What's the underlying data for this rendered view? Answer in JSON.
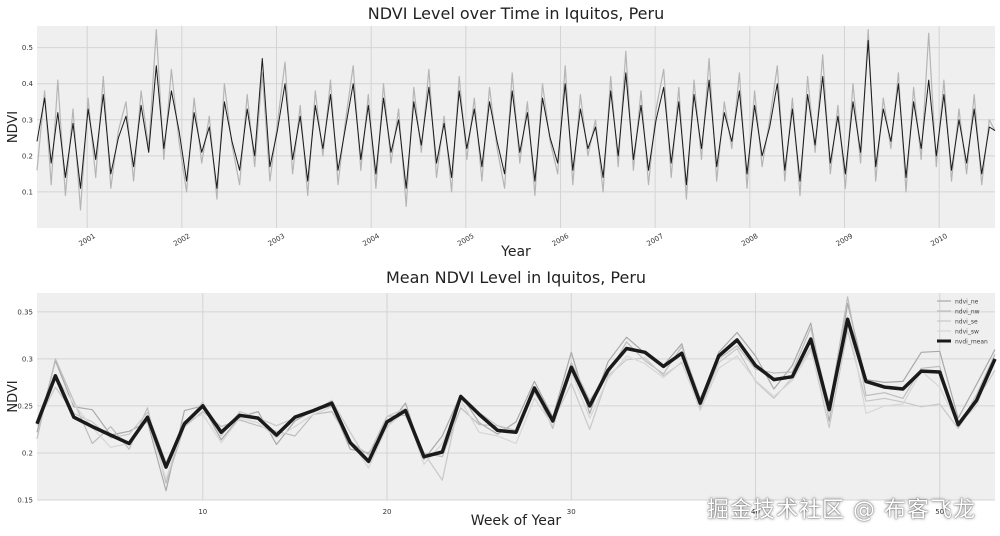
{
  "watermark": "掘金技术社区 @ 布客飞龙",
  "chart_data": [
    {
      "type": "line",
      "title": "NDVI Level over Time in Iquitos, Peru",
      "xlabel": "Year",
      "ylabel": "NDVI",
      "x_ticks": [
        "2001",
        "2002",
        "2003",
        "2004",
        "2005",
        "2006",
        "2007",
        "2008",
        "2009",
        "2010"
      ],
      "y_ticks": [
        0.1,
        0.2,
        0.3,
        0.4,
        0.5
      ],
      "xlim": [
        2000.5,
        2010.62
      ],
      "ylim": [
        0.0,
        0.56
      ],
      "grid": true,
      "series": [
        {
          "color": "#b5b5b5",
          "x": [
            2000.5,
            2000.58,
            2000.65,
            2000.72,
            2000.8,
            2000.88,
            2000.96,
            2001.04,
            2001.12,
            2001.2,
            2001.28,
            2001.36,
            2001.44,
            2001.52,
            2001.6,
            2001.68,
            2001.76,
            2001.84,
            2001.92,
            2002.0,
            2002.08,
            2002.16,
            2002.24,
            2002.32,
            2002.4,
            2002.48,
            2002.56,
            2002.64,
            2002.72,
            2002.8,
            2002.88,
            2002.96,
            2003.04,
            2003.12,
            2003.2,
            2003.28,
            2003.36,
            2003.44,
            2003.52,
            2003.6,
            2003.68,
            2003.76,
            2003.84,
            2003.92,
            2004.0,
            2004.08,
            2004.16,
            2004.24,
            2004.32,
            2004.4,
            2004.48,
            2004.56,
            2004.64,
            2004.72,
            2004.8,
            2004.88,
            2004.96,
            2005.04,
            2005.12,
            2005.2,
            2005.28,
            2005.36,
            2005.44,
            2005.52,
            2005.6,
            2005.68,
            2005.76,
            2005.84,
            2005.92,
            2006.0,
            2006.08,
            2006.16,
            2006.24,
            2006.32,
            2006.4,
            2006.48,
            2006.56,
            2006.64,
            2006.72,
            2006.8,
            2006.88,
            2006.96,
            2007.04,
            2007.12,
            2007.2,
            2007.28,
            2007.36,
            2007.44,
            2007.52,
            2007.6,
            2007.68,
            2007.76,
            2007.84,
            2007.92,
            2008.0,
            2008.08,
            2008.16,
            2008.24,
            2008.32,
            2008.4,
            2008.48,
            2008.56,
            2008.64,
            2008.72,
            2008.8,
            2008.88,
            2008.96,
            2009.04,
            2009.12,
            2009.2,
            2009.28,
            2009.36,
            2009.44,
            2009.52,
            2009.6,
            2009.68,
            2009.76,
            2009.84,
            2009.92,
            2010.0,
            2010.08,
            2010.16,
            2010.24,
            2010.32,
            2010.4,
            2010.48,
            2010.56,
            2010.62
          ],
          "values": [
            0.16,
            0.38,
            0.12,
            0.41,
            0.09,
            0.33,
            0.05,
            0.36,
            0.14,
            0.42,
            0.11,
            0.27,
            0.35,
            0.13,
            0.38,
            0.22,
            0.55,
            0.19,
            0.44,
            0.24,
            0.1,
            0.36,
            0.18,
            0.31,
            0.08,
            0.4,
            0.23,
            0.12,
            0.37,
            0.17,
            0.43,
            0.13,
            0.29,
            0.46,
            0.15,
            0.34,
            0.09,
            0.38,
            0.2,
            0.41,
            0.12,
            0.3,
            0.45,
            0.16,
            0.37,
            0.11,
            0.4,
            0.18,
            0.33,
            0.06,
            0.39,
            0.21,
            0.44,
            0.14,
            0.31,
            0.1,
            0.42,
            0.19,
            0.36,
            0.13,
            0.39,
            0.22,
            0.11,
            0.43,
            0.18,
            0.35,
            0.09,
            0.4,
            0.24,
            0.15,
            0.45,
            0.12,
            0.37,
            0.2,
            0.3,
            0.1,
            0.42,
            0.17,
            0.49,
            0.16,
            0.38,
            0.12,
            0.33,
            0.44,
            0.14,
            0.39,
            0.08,
            0.41,
            0.19,
            0.47,
            0.13,
            0.35,
            0.22,
            0.43,
            0.11,
            0.38,
            0.17,
            0.3,
            0.45,
            0.13,
            0.36,
            0.09,
            0.42,
            0.21,
            0.48,
            0.15,
            0.34,
            0.11,
            0.4,
            0.18,
            0.55,
            0.13,
            0.36,
            0.22,
            0.43,
            0.1,
            0.39,
            0.19,
            0.54,
            0.17,
            0.41,
            0.13,
            0.33,
            0.15,
            0.37,
            0.12,
            0.3,
            0.27
          ]
        },
        {
          "color": "#1a1a1a",
          "x": [
            2000.5,
            2000.58,
            2000.65,
            2000.72,
            2000.8,
            2000.88,
            2000.96,
            2001.04,
            2001.12,
            2001.2,
            2001.28,
            2001.36,
            2001.44,
            2001.52,
            2001.6,
            2001.68,
            2001.76,
            2001.84,
            2001.92,
            2002.0,
            2002.08,
            2002.16,
            2002.24,
            2002.32,
            2002.4,
            2002.48,
            2002.56,
            2002.64,
            2002.72,
            2002.8,
            2002.88,
            2002.96,
            2003.04,
            2003.12,
            2003.2,
            2003.28,
            2003.36,
            2003.44,
            2003.52,
            2003.6,
            2003.68,
            2003.76,
            2003.84,
            2003.92,
            2004.0,
            2004.08,
            2004.16,
            2004.24,
            2004.32,
            2004.4,
            2004.48,
            2004.56,
            2004.64,
            2004.72,
            2004.8,
            2004.88,
            2004.96,
            2005.04,
            2005.12,
            2005.2,
            2005.28,
            2005.36,
            2005.44,
            2005.52,
            2005.6,
            2005.68,
            2005.76,
            2005.84,
            2005.92,
            2006.0,
            2006.08,
            2006.16,
            2006.24,
            2006.32,
            2006.4,
            2006.48,
            2006.56,
            2006.64,
            2006.72,
            2006.8,
            2006.88,
            2006.96,
            2007.04,
            2007.12,
            2007.2,
            2007.28,
            2007.36,
            2007.44,
            2007.52,
            2007.6,
            2007.68,
            2007.76,
            2007.84,
            2007.92,
            2008.0,
            2008.08,
            2008.16,
            2008.24,
            2008.32,
            2008.4,
            2008.48,
            2008.56,
            2008.64,
            2008.72,
            2008.8,
            2008.88,
            2008.96,
            2009.04,
            2009.12,
            2009.2,
            2009.28,
            2009.36,
            2009.44,
            2009.52,
            2009.6,
            2009.68,
            2009.76,
            2009.84,
            2009.92,
            2010.0,
            2010.08,
            2010.16,
            2010.24,
            2010.32,
            2010.4,
            2010.48,
            2010.56,
            2010.62
          ],
          "values": [
            0.24,
            0.36,
            0.18,
            0.32,
            0.14,
            0.29,
            0.11,
            0.33,
            0.19,
            0.37,
            0.15,
            0.25,
            0.31,
            0.17,
            0.34,
            0.21,
            0.45,
            0.22,
            0.38,
            0.27,
            0.13,
            0.32,
            0.21,
            0.28,
            0.11,
            0.35,
            0.24,
            0.16,
            0.33,
            0.2,
            0.47,
            0.17,
            0.27,
            0.4,
            0.19,
            0.31,
            0.13,
            0.34,
            0.22,
            0.37,
            0.16,
            0.28,
            0.4,
            0.19,
            0.34,
            0.15,
            0.36,
            0.21,
            0.3,
            0.11,
            0.35,
            0.23,
            0.39,
            0.18,
            0.29,
            0.14,
            0.38,
            0.22,
            0.33,
            0.17,
            0.35,
            0.24,
            0.15,
            0.38,
            0.21,
            0.32,
            0.13,
            0.36,
            0.25,
            0.18,
            0.4,
            0.16,
            0.33,
            0.22,
            0.28,
            0.14,
            0.38,
            0.2,
            0.43,
            0.19,
            0.34,
            0.16,
            0.3,
            0.39,
            0.18,
            0.35,
            0.12,
            0.37,
            0.22,
            0.41,
            0.17,
            0.32,
            0.24,
            0.38,
            0.15,
            0.34,
            0.2,
            0.28,
            0.4,
            0.16,
            0.33,
            0.13,
            0.37,
            0.23,
            0.42,
            0.18,
            0.31,
            0.15,
            0.35,
            0.21,
            0.52,
            0.17,
            0.33,
            0.24,
            0.4,
            0.14,
            0.35,
            0.22,
            0.41,
            0.2,
            0.37,
            0.16,
            0.3,
            0.18,
            0.33,
            0.15,
            0.28,
            0.27
          ]
        }
      ]
    },
    {
      "type": "line",
      "title": "Mean NDVI Level in Iquitos, Peru",
      "xlabel": "Week of Year",
      "ylabel": "NDVI",
      "x_ticks": [
        10,
        20,
        30,
        40,
        50
      ],
      "y_ticks": [
        0.15,
        0.2,
        0.25,
        0.3,
        0.35
      ],
      "xlim": [
        1,
        53
      ],
      "ylim": [
        0.15,
        0.37
      ],
      "grid": true,
      "legend_position": "top-right",
      "x": [
        1,
        2,
        3,
        4,
        5,
        6,
        7,
        8,
        9,
        10,
        11,
        12,
        13,
        14,
        15,
        16,
        17,
        18,
        19,
        20,
        21,
        22,
        23,
        24,
        25,
        26,
        27,
        28,
        29,
        30,
        31,
        32,
        33,
        34,
        35,
        36,
        37,
        38,
        39,
        40,
        41,
        42,
        43,
        44,
        45,
        46,
        47,
        48,
        49,
        50,
        51,
        52,
        53
      ],
      "series": [
        {
          "name": "ndvi_ne",
          "color": "#a9a9a9",
          "width": 1.2,
          "values": [
            0.222,
            0.298,
            0.249,
            0.246,
            0.219,
            0.223,
            0.233,
            0.16,
            0.245,
            0.25,
            0.214,
            0.238,
            0.244,
            0.209,
            0.234,
            0.245,
            0.25,
            0.204,
            0.2,
            0.227,
            0.253,
            0.193,
            0.218,
            0.262,
            0.232,
            0.22,
            0.233,
            0.276,
            0.238,
            0.307,
            0.242,
            0.297,
            0.323,
            0.306,
            0.293,
            0.316,
            0.248,
            0.307,
            0.328,
            0.303,
            0.268,
            0.293,
            0.338,
            0.234,
            0.359,
            0.278,
            0.275,
            0.276,
            0.307,
            0.308,
            0.237,
            0.273,
            0.31
          ]
        },
        {
          "name": "ndvi_nw",
          "color": "#bdbdbd",
          "width": 1.2,
          "values": [
            0.215,
            0.3,
            0.255,
            0.21,
            0.228,
            0.204,
            0.248,
            0.168,
            0.228,
            0.244,
            0.228,
            0.235,
            0.229,
            0.223,
            0.218,
            0.241,
            0.244,
            0.212,
            0.198,
            0.239,
            0.24,
            0.2,
            0.196,
            0.248,
            0.23,
            0.229,
            0.224,
            0.268,
            0.226,
            0.296,
            0.256,
            0.284,
            0.318,
            0.298,
            0.284,
            0.313,
            0.258,
            0.3,
            0.314,
            0.289,
            0.285,
            0.286,
            0.333,
            0.248,
            0.366,
            0.261,
            0.264,
            0.258,
            0.29,
            0.292,
            0.227,
            0.262,
            0.305
          ]
        },
        {
          "name": "ndvi_se",
          "color": "#c8c8c8",
          "width": 1.2,
          "values": [
            0.232,
            0.27,
            0.242,
            0.233,
            0.216,
            0.22,
            0.243,
            0.19,
            0.23,
            0.254,
            0.218,
            0.244,
            0.237,
            0.229,
            0.237,
            0.244,
            0.256,
            0.222,
            0.19,
            0.239,
            0.247,
            0.2,
            0.171,
            0.262,
            0.243,
            0.229,
            0.221,
            0.264,
            0.233,
            0.274,
            0.225,
            0.282,
            0.299,
            0.301,
            0.282,
            0.296,
            0.247,
            0.296,
            0.311,
            0.276,
            0.258,
            0.28,
            0.312,
            0.227,
            0.33,
            0.255,
            0.258,
            0.254,
            0.249,
            0.252,
            0.226,
            0.256,
            0.288
          ]
        },
        {
          "name": "ndvi_sw",
          "color": "#d6d6d6",
          "width": 1.2,
          "values": [
            0.229,
            0.282,
            0.252,
            0.227,
            0.206,
            0.21,
            0.236,
            0.172,
            0.234,
            0.241,
            0.211,
            0.237,
            0.232,
            0.216,
            0.228,
            0.241,
            0.249,
            0.214,
            0.184,
            0.228,
            0.244,
            0.188,
            0.21,
            0.256,
            0.222,
            0.218,
            0.21,
            0.258,
            0.229,
            0.286,
            0.237,
            0.279,
            0.303,
            0.295,
            0.28,
            0.297,
            0.245,
            0.29,
            0.303,
            0.277,
            0.26,
            0.277,
            0.309,
            0.239,
            0.345,
            0.242,
            0.25,
            0.252,
            0.287,
            0.27,
            0.23,
            0.25,
            0.3
          ]
        },
        {
          "name": "nvdi_mean",
          "color": "#1a1a1a",
          "width": 3.5,
          "values": [
            0.231,
            0.282,
            0.238,
            0.228,
            0.219,
            0.21,
            0.238,
            0.185,
            0.231,
            0.25,
            0.222,
            0.24,
            0.237,
            0.219,
            0.238,
            0.245,
            0.253,
            0.211,
            0.191,
            0.233,
            0.245,
            0.196,
            0.201,
            0.26,
            0.241,
            0.224,
            0.222,
            0.269,
            0.234,
            0.291,
            0.25,
            0.288,
            0.311,
            0.307,
            0.292,
            0.306,
            0.253,
            0.303,
            0.32,
            0.293,
            0.278,
            0.281,
            0.321,
            0.246,
            0.342,
            0.276,
            0.27,
            0.268,
            0.287,
            0.286,
            0.23,
            0.256,
            0.3
          ]
        }
      ]
    }
  ]
}
